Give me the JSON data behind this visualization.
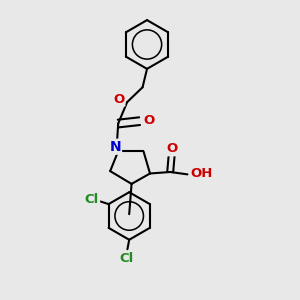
{
  "bg_color": "#e8e8e8",
  "bond_color": "#000000",
  "N_color": "#0000cc",
  "O_color": "#cc0000",
  "Cl_color": "#228B22",
  "lw": 1.5,
  "xlim": [
    0,
    10
  ],
  "ylim": [
    0,
    10
  ]
}
